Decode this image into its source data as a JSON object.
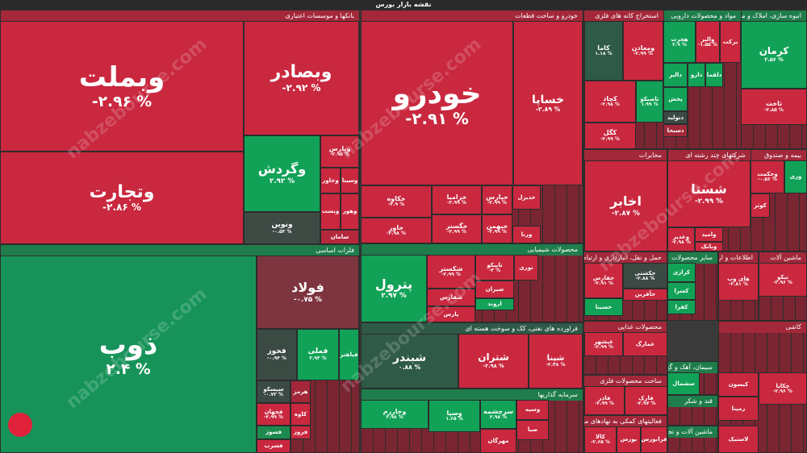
{
  "title": "نقشه بازار بورس",
  "watermark": "nabzebourse.com",
  "sectors": [
    {
      "name": "بانکها و موسسات اعتباری",
      "color": "#a3283a",
      "tiles": [
        {
          "name": "وبملت",
          "change": "-۲.۹۶ %",
          "color": "#c9283f"
        },
        {
          "name": "وبصادر",
          "change": "-۲.۹۲ %",
          "color": "#c9283f"
        },
        {
          "name": "وتجارت",
          "change": "-۲.۸۶ %",
          "color": "#c9283f"
        },
        {
          "name": "وگردش",
          "change": "۲.۹۲ %",
          "color": "#12a257"
        },
        {
          "name": "ونوین",
          "change": "-۰.۵۳ %",
          "color": "#3e4b45"
        },
        {
          "name": "وپارس",
          "change": "-۲.۹۵ %",
          "color": "#c9283f"
        },
        {
          "name": "وخاور",
          "color": "#c9283f"
        },
        {
          "name": "وسینا",
          "color": "#c9283f"
        },
        {
          "name": "وبست",
          "color": "#c9283f"
        },
        {
          "name": "وهور",
          "color": "#c9283f"
        },
        {
          "name": "سامان",
          "color": "#b5283c"
        }
      ]
    },
    {
      "name": "فلزات اساسی",
      "color": "#1f7d4c",
      "tiles": [
        {
          "name": "ذوب",
          "change": "۲.۴ %",
          "color": "#17935a"
        },
        {
          "name": "فولاد",
          "change": "-۰.۷۵ %",
          "color": "#7d3540"
        },
        {
          "name": "فخوز",
          "change": "-۰.۹۴ %",
          "color": "#3c4a44"
        },
        {
          "name": "فملی",
          "change": "۲.۹۳ %",
          "color": "#12a257"
        },
        {
          "name": "فباهنر",
          "color": "#12a257"
        },
        {
          "name": "سیسکو",
          "change": "-۰.۷۳ %",
          "color": "#3c4a44"
        },
        {
          "name": "هرمز",
          "color": "#a3283a"
        },
        {
          "name": "فجهان",
          "change": "-۲.۹۹ %",
          "color": "#c9283f"
        },
        {
          "name": "کاوه",
          "color": "#c9283f"
        },
        {
          "name": "فسوژ",
          "color": "#1d8a4f"
        },
        {
          "name": "فسرب",
          "color": "#c9283f"
        },
        {
          "name": "فروز",
          "color": "#c9283f"
        }
      ]
    },
    {
      "name": "خودرو و ساخت قطعات",
      "color": "#a3283a",
      "tiles": [
        {
          "name": "خودرو",
          "change": "-۲.۹۱ %",
          "color": "#c9283f"
        },
        {
          "name": "خساپا",
          "change": "-۲.۸۹ %",
          "color": "#c9283f"
        },
        {
          "name": "خکاوه",
          "change": "-۲.۹ %",
          "color": "#c9283f"
        },
        {
          "name": "خاور",
          "change": "-۲.۹۸ %",
          "color": "#c9283f"
        },
        {
          "name": "خزامیا",
          "change": "-۲.۹۹ %",
          "color": "#c9283f"
        },
        {
          "name": "خگستر",
          "change": "-۲.۹۹ %",
          "color": "#c9283f"
        },
        {
          "name": "خپارس",
          "change": "-۲.۹۹ %",
          "color": "#c9283f"
        },
        {
          "name": "خبهمن",
          "change": "-۲.۹۹ %",
          "color": "#c9283f"
        },
        {
          "name": "خدیزل",
          "color": "#c9283f"
        },
        {
          "name": "ورنا",
          "color": "#c9283f"
        }
      ]
    },
    {
      "name": "محصولات شیمیایی",
      "color": "#1f7d4c",
      "tiles": [
        {
          "name": "پترول",
          "change": "۲.۹۷ %",
          "color": "#12a257"
        },
        {
          "name": "شکستر",
          "change": "-۲.۹۹ %",
          "color": "#c9283f"
        },
        {
          "name": "تاپیکو",
          "change": "-۳ %",
          "color": "#c9283f"
        },
        {
          "name": "نوری",
          "color": "#c9283f"
        },
        {
          "name": "شیران",
          "color": "#c9283f"
        },
        {
          "name": "شفارس",
          "color": "#c9283f"
        },
        {
          "name": "اروند",
          "color": "#12a257"
        },
        {
          "name": "پارس",
          "color": "#c9283f"
        }
      ]
    },
    {
      "name": "فراورده های نفتی، کک و سوخت هسته ای",
      "color": "#2f5a48",
      "tiles": [
        {
          "name": "شبندر",
          "change": "۰.۸۸ %",
          "color": "#2f5a48"
        },
        {
          "name": "شتران",
          "change": "-۲.۹۸ %",
          "color": "#c9283f"
        },
        {
          "name": "شپنا",
          "change": "-۲.۴۸ %",
          "color": "#c9283f"
        }
      ]
    },
    {
      "name": "سرمایه گذاریها",
      "color": "#1f7d4c",
      "tiles": [
        {
          "name": "وخارزم",
          "change": "۲.۹۸ %",
          "color": "#12a257"
        },
        {
          "name": "وسپا",
          "change": "۱.۶۵ %",
          "color": "#12a257"
        },
        {
          "name": "سرچشمه",
          "change": "۲.۹۸ %",
          "color": "#12a257"
        },
        {
          "name": "مهرگان",
          "color": "#c9283f"
        },
        {
          "name": "وسپه",
          "color": "#c9283f"
        },
        {
          "name": "صبا",
          "color": "#c9283f"
        }
      ]
    },
    {
      "name": "استخراج کانه های فلزی",
      "color": "#a3283a",
      "tiles": [
        {
          "name": "کاما",
          "change": "۱.۱۸ %",
          "color": "#2f5a48"
        },
        {
          "name": "ومعادن",
          "change": "-۲.۹۹ %",
          "color": "#c9283f"
        },
        {
          "name": "کچاد",
          "change": "-۲.۹۸ %",
          "color": "#c9283f"
        },
        {
          "name": "تاصیکو",
          "change": "۱.۹۹ %",
          "color": "#12a257"
        },
        {
          "name": "کگل",
          "change": "-۲.۹۹ %",
          "color": "#c9283f"
        }
      ]
    },
    {
      "name": "مواد و محصولات دارویی",
      "color": "#1f7d4c",
      "tiles": [
        {
          "name": "هجرت",
          "change": "۲.۹ %",
          "color": "#12a257"
        },
        {
          "name": "والبر",
          "change": "-۱.۵۵ %",
          "color": "#c9283f"
        },
        {
          "name": "برکت",
          "color": "#c9283f"
        },
        {
          "name": "دالبر",
          "color": "#12a257"
        },
        {
          "name": "دارو",
          "color": "#12a257"
        },
        {
          "name": "دلقما",
          "color": "#12a257"
        },
        {
          "name": "پخش",
          "color": "#12a257"
        },
        {
          "name": "دتولید",
          "color": "#3c4a44"
        },
        {
          "name": "دسبحا",
          "color": "#a3283a"
        }
      ]
    },
    {
      "name": "انبوه سازی، املاک و مستغلات",
      "color": "#1f7d4c",
      "tiles": [
        {
          "name": "کرمان",
          "change": "۲.۵۶ %",
          "color": "#12a257"
        },
        {
          "name": "ثاخت",
          "change": "-۲.۸۵ %",
          "color": "#c9283f"
        }
      ]
    },
    {
      "name": "مخابرات",
      "color": "#a3283a",
      "tiles": [
        {
          "name": "اخابر",
          "change": "-۲.۸۷ %",
          "color": "#c9283f"
        }
      ]
    },
    {
      "name": "شرکتهای چند رشته ای",
      "color": "#a3283a",
      "tiles": [
        {
          "name": "شستا",
          "change": "-۲.۹۹ %",
          "color": "#c9283f"
        },
        {
          "name": "وغدیر",
          "change": "-۲.۹۸ %",
          "color": "#c9283f"
        },
        {
          "name": "وامید",
          "color": "#c9283f"
        },
        {
          "name": "وبانک",
          "color": "#c9283f"
        }
      ]
    },
    {
      "name": "بیمه و صندوق",
      "color": "#a3283a",
      "tiles": [
        {
          "name": "وحکمت",
          "change": "-۰.۵۶ %",
          "color": "#c9283f"
        },
        {
          "name": "کوثر",
          "color": "#c9283f"
        },
        {
          "name": "وری",
          "color": "#12a257"
        }
      ]
    },
    {
      "name": "حمل و نقل، انبارداری و ارتباطات",
      "color": "#a3283a",
      "tiles": [
        {
          "name": "حفارس",
          "change": "-۲.۹۱ %",
          "color": "#c9283f"
        },
        {
          "name": "حکشتی",
          "change": "-۲.۸۸ %",
          "color": "#3c4a44"
        },
        {
          "name": "حآفرین",
          "color": "#c9283f"
        },
        {
          "name": "حسینا",
          "color": "#12a257"
        }
      ]
    },
    {
      "name": "سایر محصولات",
      "color": "#1f7d4c",
      "tiles": [
        {
          "name": "کرازی",
          "color": "#12a257"
        },
        {
          "name": "کسرا",
          "color": "#12a257"
        },
        {
          "name": "کفرا",
          "color": "#12a257"
        }
      ]
    },
    {
      "name": "اطلاعات و ارتباطات",
      "color": "#a3283a",
      "tiles": [
        {
          "name": "های وب",
          "change": "-۲.۸۱ %",
          "color": "#c9283f"
        }
      ]
    },
    {
      "name": "ماشین آلات",
      "color": "#a3283a",
      "tiles": [
        {
          "name": "تیکو",
          "change": "-۲.۹۶ %",
          "color": "#c9283f"
        }
      ]
    },
    {
      "name": "محصولات غذایی",
      "color": "#a3283a",
      "tiles": [
        {
          "name": "غبشهر",
          "change": "-۲.۹۹ %",
          "color": "#c9283f"
        },
        {
          "name": "غمارگ",
          "color": "#c9283f"
        }
      ]
    },
    {
      "name": "ساخت محصولات فلزی",
      "color": "#a3283a",
      "tiles": [
        {
          "name": "فاذر",
          "change": "-۲.۹۹ %",
          "color": "#c9283f"
        },
        {
          "name": "فارک",
          "change": "-۲.۹۷ %",
          "color": "#c9283f"
        }
      ]
    },
    {
      "name": "فعالیتهای کمکی به نهادهای مالی",
      "color": "#a3283a",
      "tiles": [
        {
          "name": "کالا",
          "change": "-۲.۶۵ %",
          "color": "#c9283f"
        },
        {
          "name": "بورس",
          "color": "#c9283f"
        },
        {
          "name": "فرابورس",
          "color": "#c9283f"
        }
      ]
    },
    {
      "name": "سیمان، آهک و گچ",
      "color": "#1f7d4c",
      "tiles": [
        {
          "name": "سشمال",
          "color": "#12a257"
        }
      ]
    },
    {
      "name": "قند و شکر",
      "color": "#1f7d4c",
      "tiles": []
    },
    {
      "name": "ماشین آلات و تجهیزات",
      "color": "#1f7d4c",
      "tiles": []
    },
    {
      "name": "کاشی",
      "color": "#a3283a",
      "tiles": [
        {
          "name": "چکاپا",
          "change": "-۲.۹۶ %",
          "color": "#c9283f"
        },
        {
          "name": "کیسون",
          "color": "#c9283f"
        },
        {
          "name": "رمپنا",
          "color": "#c9283f"
        },
        {
          "name": "لاستیک",
          "color": "#c9283f"
        }
      ]
    }
  ]
}
